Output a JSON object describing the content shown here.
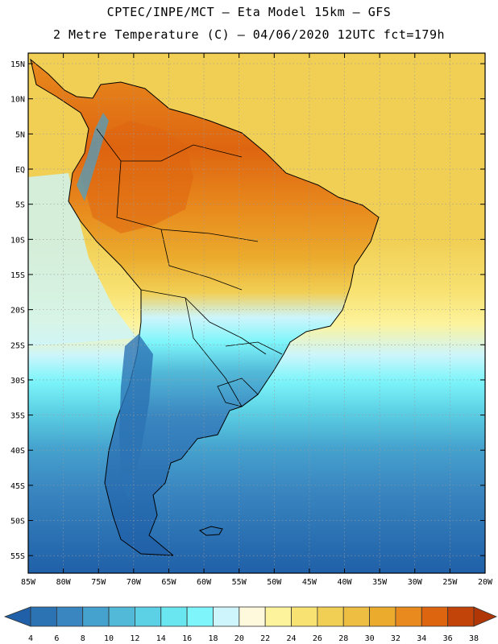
{
  "header": {
    "line1": "CPTEC/INPE/MCT –  Eta Model 15km – GFS",
    "line2": "2 Metre Temperature (C) – 04/06/2020 12UTC fct=179h"
  },
  "axes": {
    "lat_labels": [
      "15N",
      "10N",
      "5N",
      "EQ",
      "5S",
      "10S",
      "15S",
      "20S",
      "25S",
      "30S",
      "35S",
      "40S",
      "45S",
      "50S",
      "55S"
    ],
    "lon_labels": [
      "85W",
      "80W",
      "75W",
      "70W",
      "65W",
      "60W",
      "55W",
      "50W",
      "45W",
      "40W",
      "35W",
      "30W",
      "25W",
      "20W"
    ]
  },
  "colorbar": {
    "labels": [
      "4",
      "6",
      "8",
      "10",
      "12",
      "14",
      "16",
      "18",
      "20",
      "22",
      "24",
      "26",
      "28",
      "30",
      "32",
      "34",
      "36",
      "38"
    ],
    "colors": [
      "#2060a8",
      "#2c73b4",
      "#3a86c0",
      "#45a2ce",
      "#52b9d8",
      "#5cd0e4",
      "#6ae6f0",
      "#7df5fa",
      "#cdf5fb",
      "#fef8dc",
      "#fdf39c",
      "#f8e272",
      "#f1cf55",
      "#eebe42",
      "#ebab2d",
      "#e88a1d",
      "#de6510",
      "#c24408",
      "#b03606"
    ]
  },
  "chart_data": {
    "type": "heatmap",
    "title": "2 Metre Temperature (C)",
    "variable": "2 Metre Temperature",
    "unit": "C",
    "model": "Eta Model 15km - GFS",
    "source": "CPTEC/INPE/MCT",
    "init": "04/06/2020 12UTC",
    "forecast_hour": "179h",
    "lon_range": [
      -85,
      -20
    ],
    "lat_range": [
      -57.5,
      16.5
    ],
    "levels": [
      4,
      6,
      8,
      10,
      12,
      14,
      16,
      18,
      20,
      22,
      24,
      26,
      28,
      30,
      32,
      34,
      36,
      38
    ]
  }
}
